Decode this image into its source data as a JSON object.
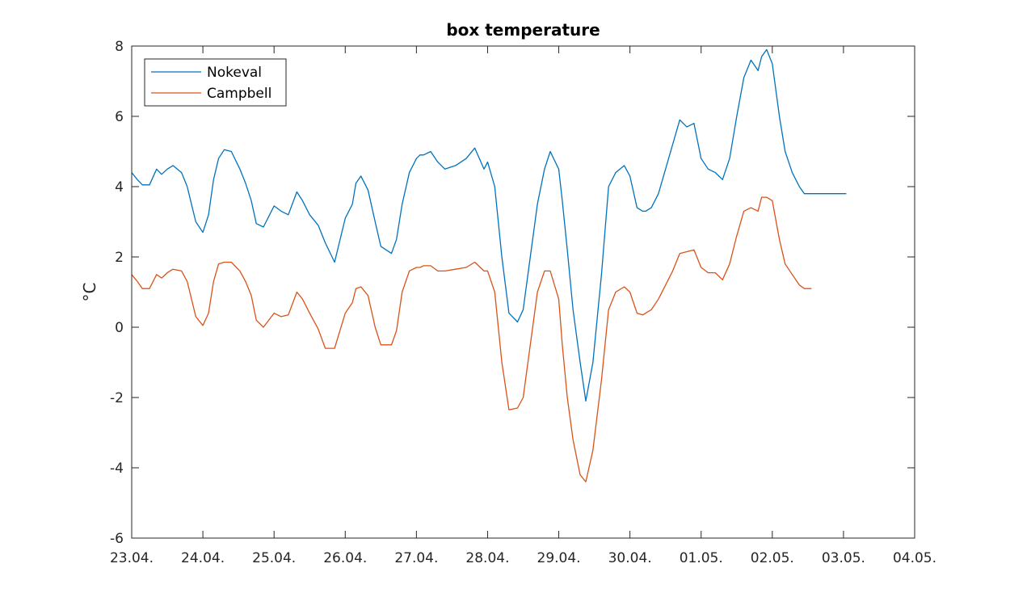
{
  "chart_data": {
    "type": "line",
    "title": "box temperature",
    "xlabel": "",
    "ylabel": "°C",
    "xlim": [
      0,
      11
    ],
    "ylim": [
      -6,
      8
    ],
    "x_ticks": [
      0,
      1,
      2,
      3,
      4,
      5,
      6,
      7,
      8,
      9,
      10,
      11
    ],
    "x_tick_labels": [
      "23.04.",
      "24.04.",
      "25.04.",
      "26.04.",
      "27.04.",
      "28.04.",
      "29.04.",
      "30.04.",
      "01.05.",
      "02.05.",
      "03.05.",
      "04.05."
    ],
    "y_ticks": [
      -6,
      -4,
      -2,
      0,
      2,
      4,
      6,
      8
    ],
    "y_tick_labels": [
      "-6",
      "-4",
      "-2",
      "0",
      "2",
      "4",
      "6",
      "8"
    ],
    "grid": false,
    "legend_position": "top-left",
    "series": [
      {
        "name": "Nokeval",
        "color": "#0072BD",
        "x": [
          0,
          0.08,
          0.15,
          0.25,
          0.35,
          0.42,
          0.5,
          0.58,
          0.7,
          0.78,
          0.9,
          1.0,
          1.08,
          1.15,
          1.22,
          1.3,
          1.4,
          1.52,
          1.6,
          1.68,
          1.75,
          1.85,
          2.0,
          2.1,
          2.2,
          2.32,
          2.4,
          2.5,
          2.62,
          2.72,
          2.85,
          3.0,
          3.1,
          3.15,
          3.22,
          3.32,
          3.42,
          3.5,
          3.65,
          3.72,
          3.8,
          3.9,
          4.0,
          4.05,
          4.1,
          4.2,
          4.3,
          4.4,
          4.55,
          4.7,
          4.82,
          4.95,
          5.0,
          5.1,
          5.2,
          5.3,
          5.42,
          5.5,
          5.6,
          5.7,
          5.8,
          5.88,
          6.0,
          6.05,
          6.12,
          6.2,
          6.3,
          6.38,
          6.48,
          6.6,
          6.7,
          6.8,
          6.92,
          7.0,
          7.1,
          7.18,
          7.22,
          7.3,
          7.4,
          7.5,
          7.6,
          7.7,
          7.8,
          7.9,
          8.0,
          8.1,
          8.2,
          8.3,
          8.4,
          8.5,
          8.6,
          8.7,
          8.8,
          8.85,
          8.92,
          9.0,
          9.1,
          9.18,
          9.28,
          9.38,
          9.45,
          9.55,
          9.6,
          9.65,
          9.7,
          9.75,
          9.8,
          9.85,
          9.9,
          9.95,
          10.0,
          10.04
        ],
        "y": [
          4.4,
          4.2,
          4.05,
          4.05,
          4.5,
          4.35,
          4.5,
          4.6,
          4.4,
          4.0,
          3.0,
          2.7,
          3.2,
          4.2,
          4.8,
          5.05,
          5.0,
          4.5,
          4.1,
          3.6,
          2.95,
          2.85,
          3.45,
          3.3,
          3.2,
          3.85,
          3.6,
          3.2,
          2.9,
          2.4,
          1.85,
          3.1,
          3.5,
          4.1,
          4.3,
          3.9,
          3.0,
          2.3,
          2.1,
          2.5,
          3.5,
          4.4,
          4.8,
          4.9,
          4.9,
          5.0,
          4.7,
          4.5,
          4.6,
          4.8,
          5.1,
          4.5,
          4.7,
          4.0,
          2.0,
          0.4,
          0.15,
          0.5,
          2.0,
          3.5,
          4.5,
          5.0,
          4.5,
          3.6,
          2.2,
          0.5,
          -1.0,
          -2.1,
          -1.0,
          1.5,
          4.0,
          4.4,
          4.6,
          4.3,
          3.4,
          3.3,
          3.3,
          3.4,
          3.8,
          4.5,
          5.2,
          5.9,
          5.7,
          5.8,
          4.8,
          4.5,
          4.4,
          4.2,
          4.8,
          6.0,
          7.1,
          7.6,
          7.3,
          7.7,
          7.9,
          7.5,
          6.0,
          5.0,
          4.4,
          4.0,
          3.8,
          3.8,
          3.8,
          3.8,
          3.8,
          3.8,
          3.8,
          3.8,
          3.8,
          3.8,
          3.8,
          3.8
        ],
        "x_end": 10.05
      },
      {
        "name": "Campbell",
        "color": "#D95319",
        "x": [
          0,
          0.08,
          0.15,
          0.25,
          0.35,
          0.42,
          0.5,
          0.58,
          0.7,
          0.78,
          0.9,
          1.0,
          1.08,
          1.15,
          1.22,
          1.3,
          1.4,
          1.52,
          1.6,
          1.68,
          1.75,
          1.85,
          2.0,
          2.1,
          2.2,
          2.32,
          2.4,
          2.5,
          2.62,
          2.72,
          2.85,
          3.0,
          3.1,
          3.15,
          3.22,
          3.32,
          3.42,
          3.5,
          3.65,
          3.72,
          3.8,
          3.9,
          4.0,
          4.05,
          4.1,
          4.2,
          4.3,
          4.4,
          4.55,
          4.7,
          4.82,
          4.95,
          5.0,
          5.1,
          5.2,
          5.3,
          5.42,
          5.5,
          5.6,
          5.7,
          5.8,
          5.88,
          6.0,
          6.05,
          6.12,
          6.2,
          6.3,
          6.38,
          6.48,
          6.6,
          6.7,
          6.8,
          6.92,
          7.0,
          7.1,
          7.18,
          7.22,
          7.3,
          7.4,
          7.5,
          7.6,
          7.7,
          7.8,
          7.9,
          8.0,
          8.1,
          8.2,
          8.3,
          8.4,
          8.5,
          8.6,
          8.7,
          8.8,
          8.85,
          8.92,
          9.0,
          9.1,
          9.18,
          9.28,
          9.38,
          9.45,
          9.55
        ],
        "y": [
          1.5,
          1.3,
          1.1,
          1.1,
          1.5,
          1.4,
          1.55,
          1.65,
          1.6,
          1.3,
          0.3,
          0.05,
          0.4,
          1.3,
          1.8,
          1.85,
          1.85,
          1.6,
          1.3,
          0.9,
          0.2,
          0.0,
          0.4,
          0.3,
          0.35,
          1.0,
          0.8,
          0.4,
          -0.05,
          -0.6,
          -0.6,
          0.4,
          0.7,
          1.1,
          1.15,
          0.9,
          0.0,
          -0.5,
          -0.5,
          -0.1,
          1.0,
          1.6,
          1.7,
          1.7,
          1.75,
          1.75,
          1.6,
          1.6,
          1.65,
          1.7,
          1.85,
          1.6,
          1.6,
          1.0,
          -1.0,
          -2.35,
          -2.3,
          -2.0,
          -0.5,
          1.0,
          1.6,
          1.6,
          0.8,
          -0.5,
          -2.0,
          -3.2,
          -4.2,
          -4.4,
          -3.5,
          -1.5,
          0.5,
          1.0,
          1.15,
          1.0,
          0.4,
          0.35,
          0.4,
          0.5,
          0.8,
          1.2,
          1.6,
          2.1,
          2.15,
          2.2,
          1.7,
          1.55,
          1.55,
          1.35,
          1.8,
          2.6,
          3.3,
          3.4,
          3.3,
          3.7,
          3.7,
          3.6,
          2.5,
          1.8,
          1.5,
          1.2,
          1.1,
          1.1
        ]
      }
    ]
  }
}
